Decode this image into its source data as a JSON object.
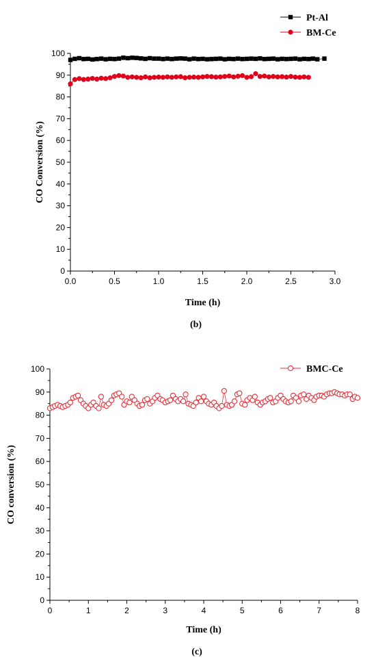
{
  "colors": {
    "black": "#000000",
    "red": "#e0001a",
    "red_open": "#e8303a"
  },
  "chart_data": [
    {
      "type": "line",
      "panel_label": "(b)",
      "xlabel": "Time (h)",
      "ylabel": "CO Conversion (%)",
      "xlim": [
        0,
        3
      ],
      "ylim": [
        0,
        100
      ],
      "xticks": [
        "0.0",
        "0.5",
        "1.0",
        "1.5",
        "2.0",
        "2.5",
        "3.0"
      ],
      "yticks": [
        "0",
        "10",
        "20",
        "30",
        "40",
        "50",
        "60",
        "70",
        "80",
        "90",
        "100"
      ],
      "grid": false,
      "legend_position": "top-right",
      "series": [
        {
          "name": "Pt-Al",
          "marker": "filled-square",
          "color": "#000000",
          "x": [
            0.0,
            0.05,
            0.1,
            0.15,
            0.2,
            0.25,
            0.3,
            0.35,
            0.4,
            0.45,
            0.5,
            0.55,
            0.6,
            0.65,
            0.7,
            0.75,
            0.8,
            0.85,
            0.9,
            0.95,
            1.0,
            1.05,
            1.1,
            1.15,
            1.2,
            1.25,
            1.3,
            1.35,
            1.4,
            1.45,
            1.5,
            1.55,
            1.6,
            1.65,
            1.7,
            1.75,
            1.8,
            1.85,
            1.9,
            1.95,
            2.0,
            2.05,
            2.1,
            2.15,
            2.2,
            2.25,
            2.3,
            2.35,
            2.4,
            2.45,
            2.5,
            2.55,
            2.6,
            2.65,
            2.7,
            2.75,
            2.8,
            2.88
          ],
          "y": [
            97.0,
            97.5,
            97.8,
            97.4,
            97.5,
            97.2,
            97.4,
            97.6,
            97.3,
            97.5,
            97.4,
            97.6,
            98.0,
            97.8,
            98.0,
            97.9,
            97.7,
            97.5,
            97.8,
            97.6,
            97.6,
            97.4,
            97.6,
            97.4,
            97.6,
            97.7,
            97.6,
            97.3,
            97.6,
            97.4,
            97.5,
            97.3,
            97.4,
            97.5,
            97.6,
            97.3,
            97.5,
            97.4,
            97.6,
            97.4,
            97.5,
            97.6,
            97.5,
            97.7,
            97.4,
            97.5,
            97.6,
            97.3,
            97.5,
            97.4,
            97.5,
            97.6,
            97.3,
            97.5,
            97.4,
            97.6,
            97.3,
            97.6
          ]
        },
        {
          "name": "BM-Ce",
          "marker": "filled-circle",
          "color": "#e0001a",
          "x": [
            0.0,
            0.05,
            0.1,
            0.15,
            0.2,
            0.25,
            0.3,
            0.35,
            0.4,
            0.45,
            0.5,
            0.55,
            0.6,
            0.65,
            0.7,
            0.75,
            0.8,
            0.85,
            0.9,
            0.95,
            1.0,
            1.05,
            1.1,
            1.15,
            1.2,
            1.25,
            1.3,
            1.35,
            1.4,
            1.45,
            1.5,
            1.55,
            1.6,
            1.65,
            1.7,
            1.75,
            1.8,
            1.85,
            1.9,
            1.95,
            2.0,
            2.05,
            2.1,
            2.15,
            2.2,
            2.25,
            2.3,
            2.35,
            2.4,
            2.45,
            2.5,
            2.55,
            2.6,
            2.65,
            2.7
          ],
          "y": [
            86.0,
            88.0,
            88.4,
            88.0,
            88.2,
            88.5,
            88.2,
            88.6,
            88.4,
            88.8,
            89.4,
            89.8,
            89.6,
            89.0,
            89.2,
            89.0,
            88.8,
            89.2,
            88.8,
            89.0,
            89.1,
            89.0,
            89.2,
            89.0,
            89.2,
            89.3,
            88.8,
            89.0,
            89.1,
            89.0,
            89.2,
            89.4,
            89.3,
            89.1,
            89.2,
            89.4,
            89.6,
            89.2,
            89.5,
            89.8,
            89.0,
            89.3,
            90.7,
            89.4,
            89.6,
            89.2,
            89.4,
            89.2,
            89.3,
            89.1,
            89.4,
            89.1,
            89.0,
            89.2,
            89.0
          ]
        }
      ]
    },
    {
      "type": "line",
      "panel_label": "(c)",
      "xlabel": "Time (h)",
      "ylabel": "CO conversion (%)",
      "xlim": [
        0,
        8
      ],
      "ylim": [
        0,
        100
      ],
      "xticks": [
        "0",
        "1",
        "2",
        "3",
        "4",
        "5",
        "6",
        "7",
        "8"
      ],
      "yticks": [
        "0",
        "10",
        "20",
        "30",
        "40",
        "50",
        "60",
        "70",
        "80",
        "90",
        "100"
      ],
      "grid": false,
      "legend_position": "top-right",
      "series": [
        {
          "name": "BMC-Ce",
          "marker": "open-circle",
          "color": "#e8303a",
          "x": [
            0.0,
            0.07,
            0.13,
            0.2,
            0.27,
            0.33,
            0.4,
            0.47,
            0.53,
            0.6,
            0.67,
            0.73,
            0.8,
            0.87,
            0.93,
            1.0,
            1.07,
            1.13,
            1.2,
            1.27,
            1.33,
            1.4,
            1.47,
            1.53,
            1.6,
            1.67,
            1.73,
            1.8,
            1.87,
            1.93,
            2.0,
            2.07,
            2.13,
            2.2,
            2.27,
            2.33,
            2.4,
            2.47,
            2.53,
            2.6,
            2.67,
            2.73,
            2.8,
            2.87,
            2.93,
            3.0,
            3.07,
            3.13,
            3.2,
            3.27,
            3.33,
            3.4,
            3.47,
            3.53,
            3.6,
            3.67,
            3.73,
            3.8,
            3.87,
            3.93,
            4.0,
            4.07,
            4.13,
            4.2,
            4.27,
            4.33,
            4.4,
            4.47,
            4.53,
            4.6,
            4.67,
            4.73,
            4.8,
            4.87,
            4.93,
            5.0,
            5.07,
            5.13,
            5.2,
            5.27,
            5.33,
            5.4,
            5.47,
            5.53,
            5.6,
            5.67,
            5.73,
            5.8,
            5.87,
            5.93,
            6.0,
            6.07,
            6.13,
            6.2,
            6.27,
            6.33,
            6.4,
            6.47,
            6.53,
            6.6,
            6.67,
            6.73,
            6.8,
            6.87,
            6.93,
            7.0,
            7.07,
            7.13,
            7.2,
            7.27,
            7.33,
            7.4,
            7.47,
            7.53,
            7.6,
            7.67,
            7.73,
            7.8,
            7.87,
            7.93,
            8.0
          ],
          "y": [
            83.0,
            83.5,
            84.0,
            84.5,
            84.0,
            83.5,
            84.0,
            84.5,
            85.5,
            87.5,
            88.0,
            88.5,
            86.5,
            85.0,
            84.0,
            83.0,
            84.5,
            85.5,
            84.0,
            83.0,
            88.0,
            84.5,
            84.0,
            85.0,
            86.5,
            88.5,
            89.0,
            89.5,
            88.0,
            84.5,
            86.0,
            85.5,
            88.0,
            86.5,
            85.0,
            84.0,
            84.5,
            86.5,
            87.0,
            85.0,
            86.0,
            87.5,
            88.5,
            87.0,
            86.5,
            85.5,
            86.0,
            86.5,
            88.5,
            87.0,
            86.0,
            87.0,
            86.0,
            89.0,
            85.0,
            84.5,
            84.0,
            85.5,
            87.5,
            86.0,
            88.0,
            86.0,
            85.0,
            84.5,
            85.5,
            84.0,
            83.0,
            84.0,
            90.5,
            84.5,
            84.0,
            84.5,
            86.0,
            89.0,
            89.5,
            85.0,
            84.5,
            86.5,
            87.5,
            86.5,
            88.0,
            85.5,
            84.5,
            85.5,
            86.0,
            87.0,
            87.5,
            85.5,
            86.0,
            87.5,
            88.5,
            87.0,
            86.0,
            85.5,
            86.0,
            88.5,
            87.5,
            86.0,
            88.5,
            89.0,
            87.0,
            88.5,
            87.5,
            86.5,
            88.0,
            88.5,
            88.5,
            88.0,
            89.0,
            89.5,
            89.5,
            90.0,
            89.5,
            89.0,
            89.0,
            88.5,
            89.0,
            89.0,
            87.0,
            88.0,
            87.5
          ]
        }
      ]
    }
  ]
}
